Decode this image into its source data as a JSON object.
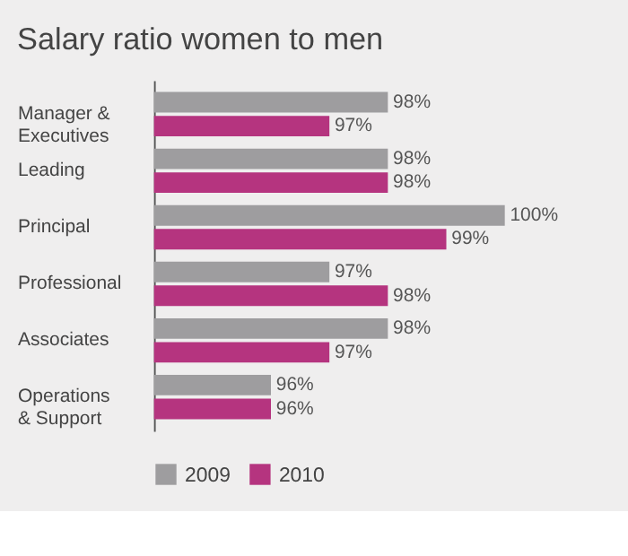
{
  "chart_data": {
    "type": "bar",
    "orientation": "horizontal",
    "title": "Salary ratio women to men",
    "categories": [
      "Manager & Executives",
      "Leading",
      "Principal",
      "Professional",
      "Associates",
      "Operations & Support"
    ],
    "series": [
      {
        "name": "2009",
        "color": "#9e9d9f",
        "values": [
          98,
          98,
          100,
          97,
          98,
          96
        ],
        "value_labels": [
          "98%",
          "98%",
          "100%",
          "97%",
          "98%",
          "96%"
        ]
      },
      {
        "name": "2010",
        "color": "#b5347f",
        "values": [
          97,
          98,
          99,
          98,
          97,
          96
        ],
        "value_labels": [
          "97%",
          "98%",
          "99%",
          "98%",
          "97%",
          "96%"
        ]
      }
    ],
    "xlim": [
      94,
      100
    ],
    "tick_labels": "y",
    "grid": false,
    "legend": "bottom"
  }
}
